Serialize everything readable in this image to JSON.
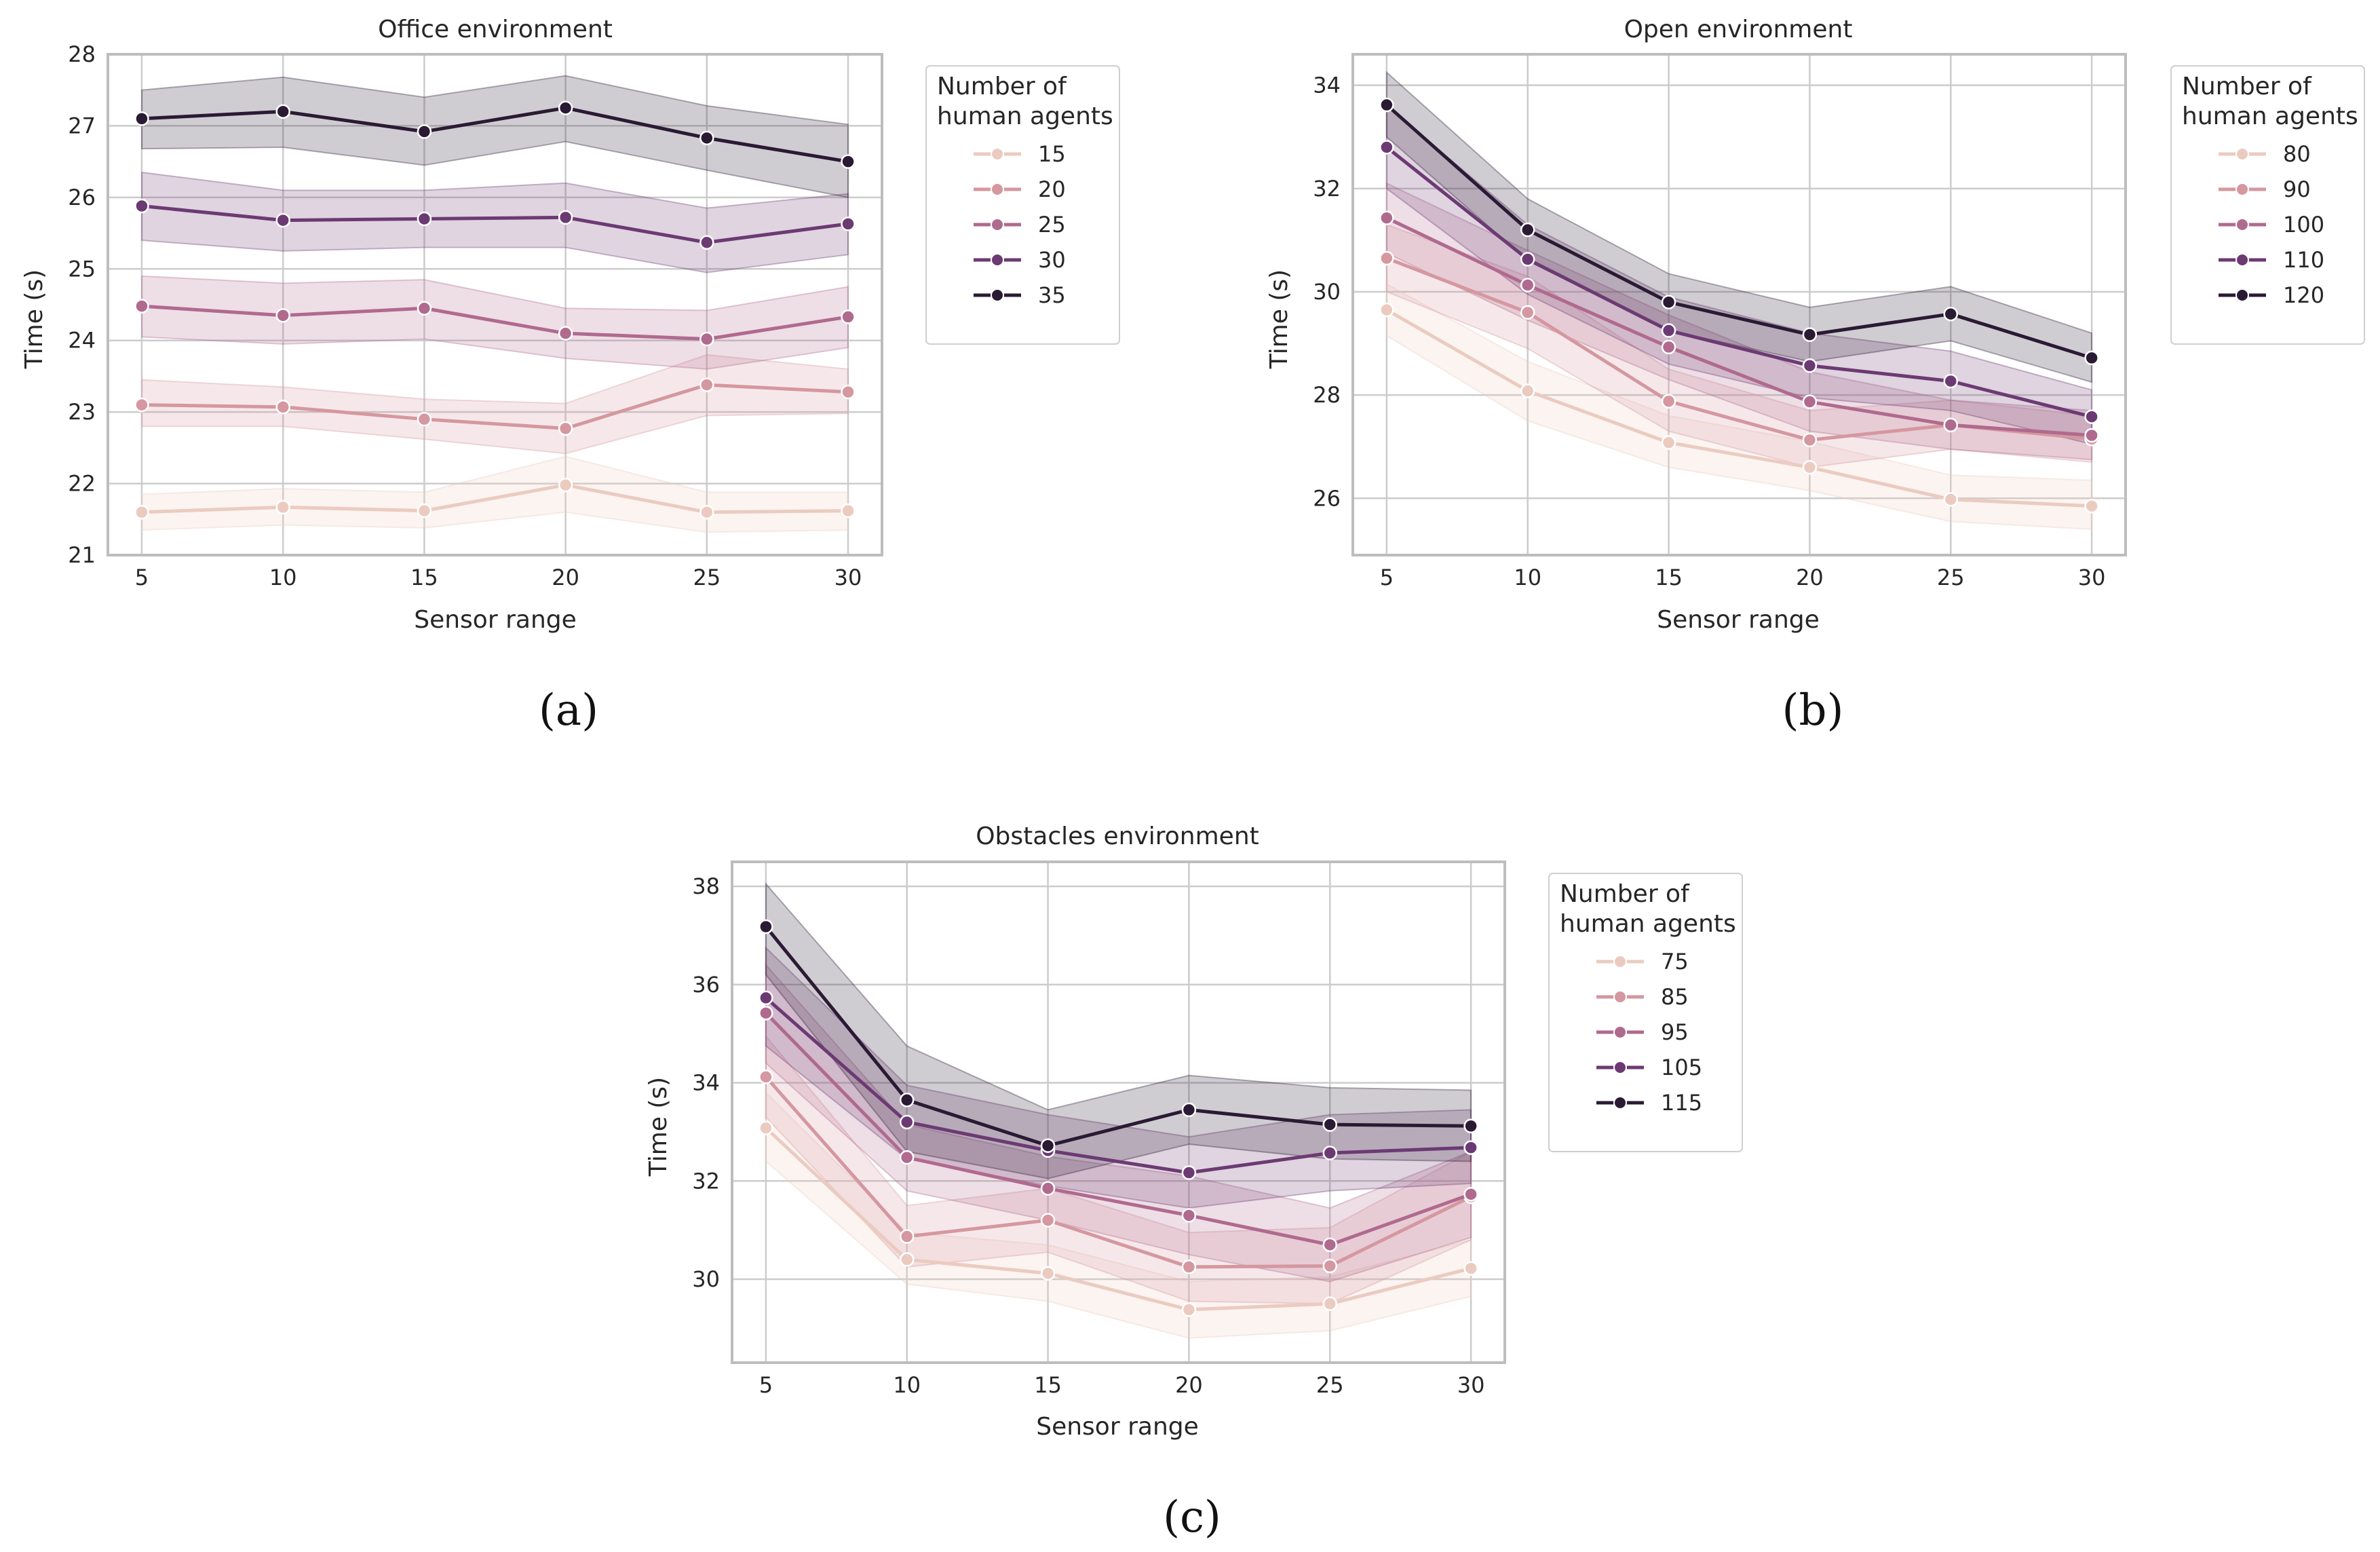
{
  "chart_data": [
    {
      "type": "line",
      "panel_label": "(a)",
      "title": "Office environment",
      "xlabel": "Sensor range",
      "ylabel": "Time (s)",
      "x": [
        5,
        10,
        15,
        20,
        25,
        30
      ],
      "xticks": [
        "5",
        "10",
        "15",
        "20",
        "25",
        "30"
      ],
      "xlim": [
        3.8,
        31.2
      ],
      "ylim": [
        21,
        28
      ],
      "yticks": [
        "21",
        "22",
        "23",
        "24",
        "25",
        "26",
        "27",
        "28"
      ],
      "legend": {
        "title_line1": "Number of",
        "title_line2": "human agents",
        "placement": "outside-right"
      },
      "series": [
        {
          "name": "15",
          "color": "#ebcbc0",
          "values": [
            21.6,
            21.67,
            21.62,
            21.98,
            21.6,
            21.62
          ],
          "ci_lower": [
            21.35,
            21.42,
            21.38,
            21.6,
            21.32,
            21.35
          ],
          "ci_upper": [
            21.85,
            21.93,
            21.88,
            22.38,
            21.88,
            21.88
          ]
        },
        {
          "name": "20",
          "color": "#d597a0",
          "values": [
            23.1,
            23.07,
            22.9,
            22.77,
            23.38,
            23.28
          ],
          "ci_lower": [
            22.8,
            22.8,
            22.62,
            22.42,
            22.95,
            22.98
          ],
          "ci_upper": [
            23.45,
            23.35,
            23.18,
            23.12,
            23.8,
            23.6
          ]
        },
        {
          "name": "25",
          "color": "#b06a8e",
          "values": [
            24.48,
            24.35,
            24.45,
            24.1,
            24.02,
            24.33
          ],
          "ci_lower": [
            24.05,
            23.95,
            24.02,
            23.75,
            23.6,
            23.9
          ],
          "ci_upper": [
            24.9,
            24.8,
            24.85,
            24.45,
            24.42,
            24.75
          ]
        },
        {
          "name": "30",
          "color": "#6c3a73",
          "values": [
            25.88,
            25.68,
            25.7,
            25.72,
            25.37,
            25.63
          ],
          "ci_lower": [
            25.4,
            25.25,
            25.3,
            25.3,
            24.95,
            25.2
          ],
          "ci_upper": [
            26.35,
            26.1,
            26.1,
            26.2,
            25.85,
            26.05
          ]
        },
        {
          "name": "35",
          "color": "#2a1a33",
          "values": [
            27.1,
            27.2,
            26.92,
            27.25,
            26.83,
            26.5
          ],
          "ci_lower": [
            26.68,
            26.7,
            26.45,
            26.78,
            26.38,
            26.0
          ],
          "ci_upper": [
            27.5,
            27.68,
            27.4,
            27.7,
            27.28,
            27.02
          ]
        }
      ]
    },
    {
      "type": "line",
      "panel_label": "(b)",
      "title": "Open environment",
      "xlabel": "Sensor range",
      "ylabel": "Time (s)",
      "x": [
        5,
        10,
        15,
        20,
        25,
        30
      ],
      "xticks": [
        "5",
        "10",
        "15",
        "20",
        "25",
        "30"
      ],
      "xlim": [
        3.8,
        31.2
      ],
      "ylim": [
        24.9,
        34.6
      ],
      "yticks": [
        "26",
        "28",
        "30",
        "32",
        "34"
      ],
      "legend": {
        "title_line1": "Number of",
        "title_line2": "human agents",
        "placement": "outside-right"
      },
      "series": [
        {
          "name": "80",
          "color": "#ebcbc0",
          "values": [
            29.65,
            28.08,
            27.08,
            26.6,
            25.98,
            25.85
          ],
          "ci_lower": [
            29.15,
            27.5,
            26.6,
            26.15,
            25.55,
            25.4
          ],
          "ci_upper": [
            30.15,
            28.65,
            27.6,
            27.1,
            26.45,
            26.35
          ]
        },
        {
          "name": "90",
          "color": "#d597a0",
          "values": [
            30.65,
            29.6,
            27.88,
            27.13,
            27.42,
            27.15
          ],
          "ci_lower": [
            30.0,
            28.9,
            27.3,
            26.6,
            26.95,
            26.7
          ],
          "ci_upper": [
            31.3,
            30.3,
            28.5,
            27.7,
            27.9,
            27.6
          ]
        },
        {
          "name": "100",
          "color": "#b06a8e",
          "values": [
            31.43,
            30.13,
            28.93,
            27.87,
            27.42,
            27.22
          ],
          "ci_lower": [
            30.75,
            29.45,
            28.3,
            27.3,
            26.95,
            26.75
          ],
          "ci_upper": [
            32.1,
            30.8,
            29.55,
            28.45,
            27.9,
            27.7
          ]
        },
        {
          "name": "110",
          "color": "#6c3a73",
          "values": [
            32.8,
            30.63,
            29.25,
            28.57,
            28.27,
            27.58
          ],
          "ci_lower": [
            32.0,
            29.95,
            28.6,
            27.95,
            27.7,
            27.05
          ],
          "ci_upper": [
            33.6,
            31.3,
            29.9,
            29.2,
            28.85,
            28.1
          ]
        },
        {
          "name": "120",
          "color": "#2a1a33",
          "values": [
            33.62,
            31.2,
            29.8,
            29.17,
            29.57,
            28.72
          ],
          "ci_lower": [
            33.0,
            30.6,
            29.25,
            28.65,
            29.05,
            28.25
          ],
          "ci_upper": [
            34.25,
            31.8,
            30.35,
            29.7,
            30.1,
            29.2
          ]
        }
      ]
    },
    {
      "type": "line",
      "panel_label": "(c)",
      "title": "Obstacles environment",
      "xlabel": "Sensor range",
      "ylabel": "Time (s)",
      "x": [
        5,
        10,
        15,
        20,
        25,
        30
      ],
      "xticks": [
        "5",
        "10",
        "15",
        "20",
        "25",
        "30"
      ],
      "xlim": [
        3.8,
        31.2
      ],
      "ylim": [
        28.3,
        38.5
      ],
      "yticks": [
        "30",
        "32",
        "34",
        "36",
        "38"
      ],
      "legend": {
        "title_line1": "Number of",
        "title_line2": "human agents",
        "placement": "outside-right"
      },
      "series": [
        {
          "name": "75",
          "color": "#ebcbc0",
          "values": [
            33.08,
            30.4,
            30.12,
            29.38,
            29.5,
            30.22
          ],
          "ci_lower": [
            32.4,
            29.9,
            29.55,
            28.8,
            28.95,
            29.65
          ],
          "ci_upper": [
            33.8,
            30.95,
            30.7,
            29.95,
            30.05,
            30.8
          ]
        },
        {
          "name": "85",
          "color": "#d597a0",
          "values": [
            34.12,
            30.87,
            31.2,
            30.25,
            30.27,
            31.68
          ],
          "ci_lower": [
            33.3,
            30.25,
            30.55,
            29.55,
            29.5,
            30.8
          ],
          "ci_upper": [
            34.95,
            31.5,
            31.85,
            30.95,
            31.05,
            32.6
          ]
        },
        {
          "name": "95",
          "color": "#b06a8e",
          "values": [
            35.42,
            32.48,
            31.85,
            31.3,
            30.7,
            31.73
          ],
          "ci_lower": [
            34.4,
            31.8,
            31.2,
            30.5,
            29.95,
            30.85
          ],
          "ci_upper": [
            36.4,
            33.15,
            32.5,
            32.1,
            31.45,
            32.6
          ]
        },
        {
          "name": "105",
          "color": "#6c3a73",
          "values": [
            35.73,
            33.2,
            32.62,
            32.17,
            32.57,
            32.68
          ],
          "ci_lower": [
            34.75,
            32.45,
            31.9,
            31.45,
            31.8,
            31.95
          ],
          "ci_upper": [
            36.75,
            33.95,
            33.35,
            32.9,
            33.35,
            33.45
          ]
        },
        {
          "name": "115",
          "color": "#2a1a33",
          "values": [
            37.18,
            33.65,
            32.72,
            33.45,
            33.15,
            33.12
          ],
          "ci_lower": [
            36.2,
            32.6,
            32.05,
            32.75,
            32.45,
            32.4
          ],
          "ci_upper": [
            38.05,
            34.75,
            33.45,
            34.15,
            33.9,
            33.85
          ]
        }
      ]
    }
  ]
}
